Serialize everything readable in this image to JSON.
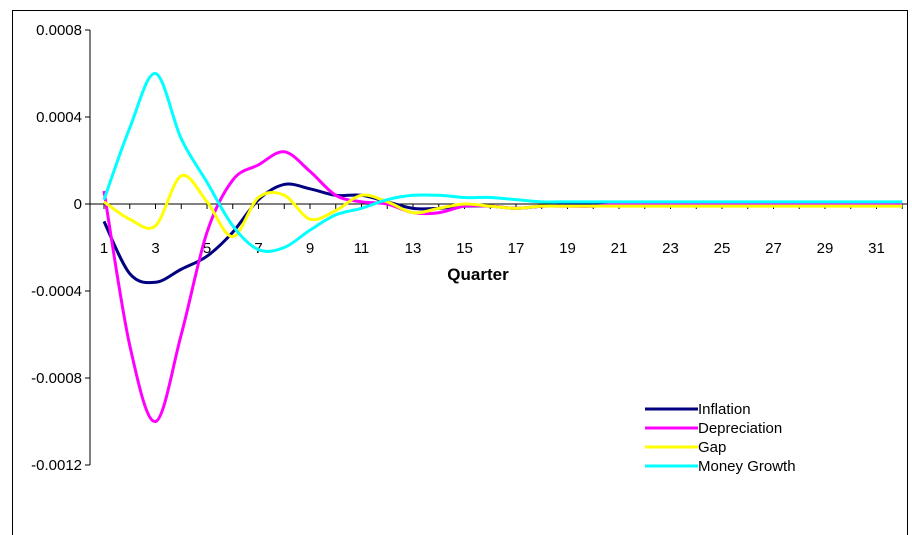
{
  "chart_data": {
    "type": "line",
    "title": "",
    "xlabel": "Quarter",
    "ylabel": "",
    "x": [
      1,
      2,
      3,
      4,
      5,
      6,
      7,
      8,
      9,
      10,
      11,
      12,
      13,
      14,
      15,
      16,
      17,
      18,
      19,
      20,
      21,
      22,
      23,
      24,
      25,
      26,
      27,
      28,
      29,
      30,
      31,
      32
    ],
    "x_tick_labels": [
      "1",
      "3",
      "5",
      "7",
      "9",
      "11",
      "13",
      "15",
      "17",
      "19",
      "21",
      "23",
      "25",
      "27",
      "29",
      "31"
    ],
    "y_tick_labels": [
      "0.0008",
      "0.0004",
      "0",
      "-0.0004",
      "-0.0008",
      "-0.0012"
    ],
    "ylim": [
      -0.0012,
      0.0008
    ],
    "grid": false,
    "legend_position": "lower-right",
    "series": [
      {
        "name": "Inflation",
        "color": "#000080",
        "values": [
          -8e-05,
          -0.00032,
          -0.00036,
          -0.0003,
          -0.00024,
          -0.00013,
          2e-05,
          9e-05,
          7e-05,
          4e-05,
          4e-05,
          1e-05,
          -2e-05,
          -2e-05,
          -1e-05,
          -1e-05,
          -2e-05,
          -1e-05,
          0,
          0,
          0,
          0,
          0,
          0,
          0,
          0,
          0,
          0,
          0,
          0,
          0,
          0
        ]
      },
      {
        "name": "Depreciation",
        "color": "#FF00FF",
        "values": [
          6e-05,
          -0.00065,
          -0.001,
          -0.0006,
          -0.00013,
          0.00011,
          0.00018,
          0.00024,
          0.00015,
          4e-05,
          1e-05,
          0,
          -4e-05,
          -4e-05,
          -1e-05,
          -1e-05,
          -2e-05,
          -1e-05,
          -1e-05,
          -1e-05,
          0,
          0,
          0,
          0,
          0,
          0,
          0,
          0,
          0,
          0,
          0,
          0
        ]
      },
      {
        "name": "Gap",
        "color": "#FFFF00",
        "values": [
          1e-05,
          -7e-05,
          -0.0001,
          0.00013,
          1e-05,
          -0.00015,
          3e-05,
          4e-05,
          -7e-05,
          -3e-05,
          4e-05,
          1e-05,
          -4e-05,
          -2e-05,
          0,
          -1e-05,
          -2e-05,
          -1e-05,
          -1e-05,
          -1e-05,
          -1e-05,
          -1e-05,
          -1e-05,
          -1e-05,
          -1e-05,
          -1e-05,
          -1e-05,
          -1e-05,
          -1e-05,
          -1e-05,
          -1e-05,
          -1e-05
        ]
      },
      {
        "name": "Money Growth",
        "color": "#00FFFF",
        "values": [
          2e-05,
          0.00035,
          0.0006,
          0.0003,
          0.0001,
          -0.0001,
          -0.00021,
          -0.0002,
          -0.00012,
          -5e-05,
          -2e-05,
          2e-05,
          4e-05,
          4e-05,
          3e-05,
          3e-05,
          2e-05,
          1e-05,
          1e-05,
          1e-05,
          1e-05,
          1e-05,
          1e-05,
          1e-05,
          1e-05,
          1e-05,
          1e-05,
          1e-05,
          1e-05,
          1e-05,
          1e-05,
          1e-05
        ]
      }
    ]
  }
}
